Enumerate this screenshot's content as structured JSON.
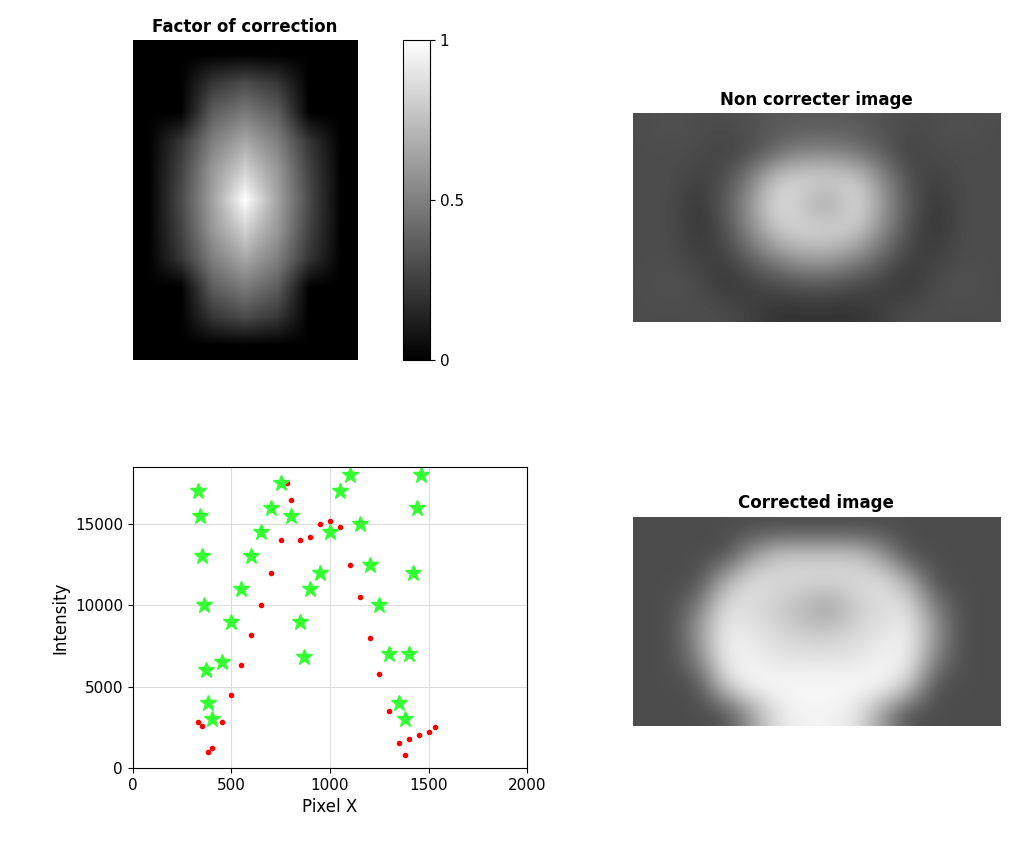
{
  "chart_data": [
    {
      "type": "heatmap",
      "title": "Factor of correction",
      "color": "gray",
      "tick_labels": false,
      "cells": [
        [
          0,
          0,
          0,
          0,
          0,
          0,
          0
        ],
        [
          0,
          0,
          0.22,
          0.3,
          0.22,
          0,
          0
        ],
        [
          0,
          0,
          0.37,
          0.48,
          0.37,
          0,
          0
        ],
        [
          0,
          0.21,
          0.5,
          0.66,
          0.5,
          0.21,
          0
        ],
        [
          0,
          0.26,
          0.6,
          0.82,
          0.6,
          0.26,
          0
        ],
        [
          0,
          0.29,
          0.64,
          1,
          0.64,
          0.29,
          0
        ],
        [
          0,
          0.26,
          0.6,
          0.82,
          0.6,
          0.26,
          0
        ],
        [
          0,
          0.21,
          0.5,
          0.66,
          0.5,
          0.21,
          0
        ],
        [
          0,
          0,
          0.37,
          0.48,
          0.37,
          0,
          0
        ],
        [
          0,
          0,
          0.22,
          0.3,
          0.22,
          0,
          0
        ],
        [
          0,
          0,
          0,
          0,
          0,
          0,
          0
        ]
      ],
      "colorbar_lim": [
        0,
        1
      ],
      "colorbar_ticks": [
        0,
        0.5,
        1
      ]
    },
    {
      "type": "image",
      "title": "Non correcter image",
      "color": "gray",
      "tick_labels": false,
      "clim": [
        0,
        1
      ],
      "cells": [
        [
          0.3,
          0.32,
          0.3,
          0.3,
          0.32,
          0.35,
          0.35,
          0.35,
          0.35,
          0.32,
          0.3,
          0.3,
          0.32,
          0.3
        ],
        [
          0.3,
          0.3,
          0.3,
          0.25,
          0.3,
          0.4,
          0.5,
          0.5,
          0.45,
          0.35,
          0.25,
          0.3,
          0.3,
          0.3
        ],
        [
          0.3,
          0.3,
          0.25,
          0.3,
          0.5,
          0.8,
          0.85,
          0.85,
          0.8,
          0.55,
          0.3,
          0.25,
          0.3,
          0.3
        ],
        [
          0.3,
          0.3,
          0.2,
          0.35,
          0.6,
          0.9,
          0.75,
          0.6,
          0.9,
          0.6,
          0.35,
          0.2,
          0.3,
          0.3
        ],
        [
          0.3,
          0.3,
          0.2,
          0.3,
          0.55,
          0.8,
          0.85,
          0.85,
          0.8,
          0.55,
          0.3,
          0.2,
          0.3,
          0.3
        ],
        [
          0.3,
          0.3,
          0.25,
          0.25,
          0.4,
          0.55,
          0.65,
          0.65,
          0.55,
          0.4,
          0.25,
          0.25,
          0.3,
          0.3
        ],
        [
          0.3,
          0.32,
          0.3,
          0.2,
          0.25,
          0.3,
          0.35,
          0.35,
          0.3,
          0.25,
          0.2,
          0.3,
          0.32,
          0.3
        ],
        [
          0.3,
          0.3,
          0.3,
          0.3,
          0.25,
          0.2,
          0.2,
          0.2,
          0.2,
          0.25,
          0.3,
          0.3,
          0.3,
          0.3
        ]
      ]
    },
    {
      "type": "image",
      "title": "Corrected image",
      "color": "gray",
      "tick_labels": false,
      "clim": [
        0,
        1
      ],
      "cells": [
        [
          0.3,
          0.3,
          0.3,
          0.3,
          0.3,
          0.3,
          0.3,
          0.3,
          0.3,
          0.3,
          0.3,
          0.3,
          0.3,
          0.3
        ],
        [
          0.3,
          0.3,
          0.3,
          0.3,
          0.6,
          0.8,
          0.8,
          0.8,
          0.8,
          0.6,
          0.3,
          0.3,
          0.3,
          0.3
        ],
        [
          0.3,
          0.3,
          0.3,
          0.7,
          0.9,
          0.85,
          0.85,
          0.85,
          0.85,
          0.9,
          0.7,
          0.3,
          0.3,
          0.3
        ],
        [
          0.3,
          0.3,
          0.5,
          0.9,
          0.85,
          0.8,
          0.7,
          0.6,
          0.8,
          0.85,
          0.9,
          0.5,
          0.3,
          0.3
        ],
        [
          0.3,
          0.3,
          0.6,
          0.95,
          0.9,
          0.85,
          0.8,
          0.8,
          0.85,
          0.9,
          0.95,
          0.6,
          0.3,
          0.3
        ],
        [
          0.3,
          0.3,
          0.5,
          0.95,
          0.95,
          0.9,
          0.9,
          0.9,
          0.9,
          0.95,
          0.95,
          0.5,
          0.3,
          0.3
        ],
        [
          0.3,
          0.3,
          0.3,
          0.8,
          0.98,
          0.98,
          0.98,
          0.98,
          0.98,
          0.98,
          0.8,
          0.3,
          0.3,
          0.3
        ],
        [
          0.3,
          0.3,
          0.3,
          0.3,
          0.6,
          0.9,
          0.95,
          0.95,
          0.9,
          0.6,
          0.3,
          0.3,
          0.3,
          0.3
        ]
      ]
    },
    {
      "type": "scatter",
      "x_label": "Pixel X",
      "y_label": "Intensity",
      "xlim": [
        0,
        2000
      ],
      "xticks": [
        0,
        500,
        1000,
        1500,
        2000
      ],
      "ylim": [
        0,
        18500
      ],
      "yticks": [
        0,
        5000,
        10000,
        15000
      ],
      "grid": true,
      "series": [
        {
          "color": "#ff0000",
          "marker": "point",
          "x": [
            330,
            350,
            380,
            400,
            450,
            500,
            550,
            600,
            650,
            700,
            750,
            780,
            800,
            850,
            900,
            950,
            1000,
            1050,
            1100,
            1150,
            1200,
            1250,
            1300,
            1350,
            1380,
            1400,
            1450,
            1500,
            1530
          ],
          "values": [
            2800,
            2600,
            1000,
            1200,
            2800,
            4500,
            6300,
            8200,
            10000,
            12000,
            14000,
            17500,
            16500,
            14000,
            14200,
            15000,
            15200,
            14800,
            12500,
            10500,
            8000,
            5800,
            3500,
            1500,
            800,
            1800,
            2000,
            2200,
            2500
          ]
        },
        {
          "color": "#33ff33",
          "marker": "star",
          "x": [
            330,
            340,
            350,
            360,
            370,
            380,
            400,
            450,
            500,
            550,
            600,
            650,
            700,
            750,
            800,
            850,
            870,
            900,
            950,
            1000,
            1050,
            1100,
            1150,
            1200,
            1250,
            1300,
            1350,
            1380,
            1400,
            1420,
            1440,
            1460
          ],
          "values": [
            17000,
            15500,
            13000,
            10000,
            6000,
            4000,
            3000,
            6500,
            9000,
            11000,
            13000,
            14500,
            16000,
            17500,
            15500,
            9000,
            6800,
            11000,
            12000,
            14500,
            17000,
            18000,
            15000,
            12500,
            10000,
            7000,
            4000,
            3000,
            7000,
            12000,
            16000,
            18000
          ]
        }
      ]
    }
  ]
}
